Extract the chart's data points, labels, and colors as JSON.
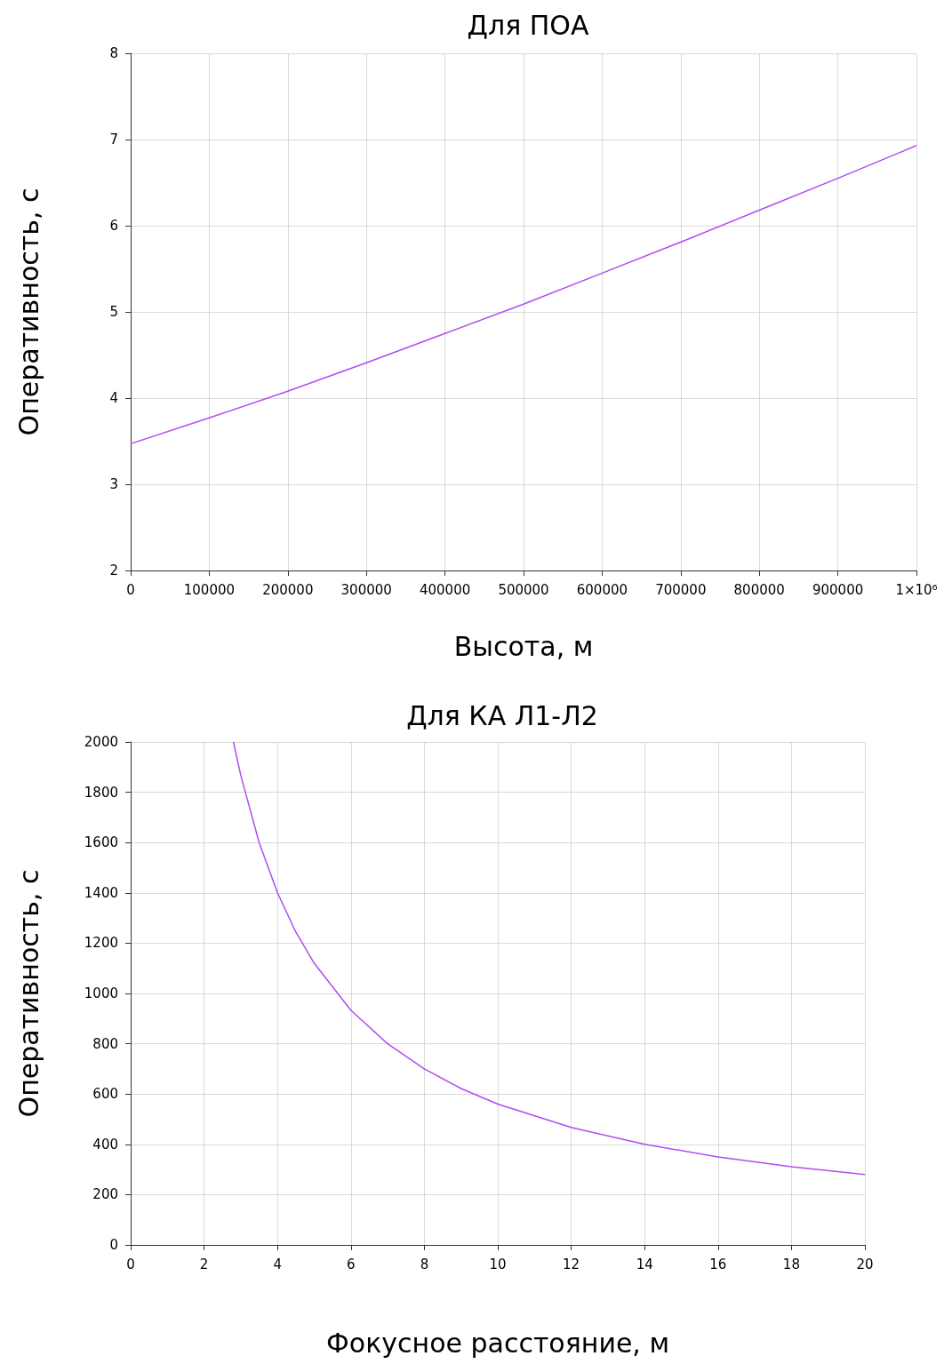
{
  "chart_data": [
    {
      "type": "line",
      "title": "Для ПОА",
      "xlabel": "Высота, м",
      "ylabel": "Оперативность, с",
      "x": [
        0,
        100000,
        200000,
        300000,
        400000,
        500000,
        600000,
        700000,
        800000,
        900000,
        1000000
      ],
      "series": [
        {
          "color": "#b04cf0",
          "values": [
            3.47,
            3.77,
            4.08,
            4.41,
            4.75,
            5.09,
            5.45,
            5.81,
            6.18,
            6.55,
            6.93
          ]
        }
      ],
      "xlim": [
        0,
        1000000
      ],
      "xticks": [
        0,
        100000,
        200000,
        300000,
        400000,
        500000,
        600000,
        700000,
        800000,
        900000,
        {
          "value": 1000000,
          "label": "1×10⁶"
        }
      ],
      "ylim": [
        2,
        8
      ],
      "yticks": [
        2,
        3,
        4,
        5,
        6,
        7,
        8
      ],
      "grid": true,
      "marker": "none",
      "line_style": "solid"
    },
    {
      "type": "line",
      "title": "Для КА Л1-Л2",
      "xlabel": "Фокусное расстояние, м",
      "ylabel": "Оперативность, с",
      "x": [
        2.8,
        3,
        3.5,
        4,
        4.5,
        5,
        6,
        7,
        8,
        9,
        10,
        12,
        14,
        16,
        18,
        20
      ],
      "series": [
        {
          "color": "#b04cf0",
          "values": [
            2000,
            1867,
            1600,
            1400,
            1244,
            1120,
            933,
            800,
            700,
            622,
            560,
            467,
            400,
            350,
            311,
            280
          ]
        }
      ],
      "xlim": [
        0,
        20
      ],
      "xticks": [
        0,
        2,
        4,
        6,
        8,
        10,
        12,
        14,
        16,
        18,
        20
      ],
      "ylim": [
        0,
        2000
      ],
      "yticks": [
        0,
        200,
        400,
        600,
        800,
        1000,
        1200,
        1400,
        1600,
        1800,
        2000
      ],
      "grid": true,
      "marker": "none",
      "line_style": "solid"
    }
  ]
}
